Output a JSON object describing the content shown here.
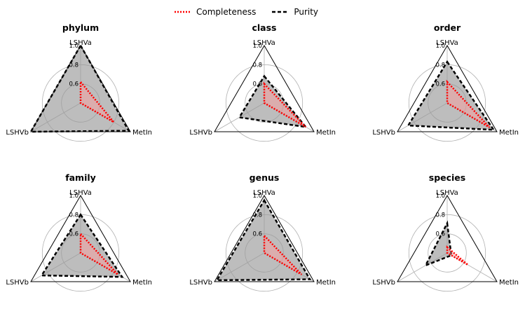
{
  "chart_data": {
    "type": "radar",
    "axes": [
      "LSHVa",
      "MetIn",
      "LSHVb"
    ],
    "legend": [
      {
        "name": "Completeness",
        "color": "#ff0000",
        "style": "dotted",
        "fill": "#ff9999"
      },
      {
        "name": "Purity",
        "color": "#000000",
        "style": "dashed",
        "fill": "#999999"
      }
    ],
    "charts": [
      {
        "title": "phylum",
        "rmin": 0.4,
        "rmax": 1.0,
        "rticks": [
          {
            "v": 0.6,
            "label": "0.6"
          },
          {
            "v": 0.8,
            "label": "0.8"
          },
          {
            "v": 1.0,
            "label": "1.0"
          }
        ],
        "series": {
          "Completeness": [
            0.62,
            0.8,
            0.4
          ],
          "Purity": [
            1.0,
            0.98,
            1.0
          ]
        }
      },
      {
        "title": "class",
        "rmin": 0.4,
        "rmax": 1.0,
        "rticks": [
          {
            "v": 0.6,
            "label": "0.6"
          },
          {
            "v": 0.8,
            "label": "0.8"
          },
          {
            "v": 1.0,
            "label": "1.0"
          }
        ],
        "series": {
          "Completeness": [
            0.6,
            0.9,
            0.4
          ],
          "Purity": [
            0.68,
            0.9,
            0.7
          ]
        }
      },
      {
        "title": "order",
        "rmin": 0.4,
        "rmax": 1.0,
        "rticks": [
          {
            "v": 0.6,
            "label": "0.6"
          },
          {
            "v": 0.8,
            "label": "0.8"
          },
          {
            "v": 1.0,
            "label": "1.0"
          }
        ],
        "series": {
          "Completeness": [
            0.62,
            0.91,
            0.4
          ],
          "Purity": [
            0.83,
            0.96,
            0.87
          ]
        }
      },
      {
        "title": "family",
        "rmin": 0.4,
        "rmax": 1.0,
        "rticks": [
          {
            "v": 0.6,
            "label": "0.6"
          },
          {
            "v": 0.8,
            "label": "0.8"
          },
          {
            "v": 1.0,
            "label": "1.0"
          }
        ],
        "series": {
          "Completeness": [
            0.6,
            0.85,
            0.4
          ],
          "Purity": [
            0.8,
            0.9,
            0.87
          ]
        }
      },
      {
        "title": "genus",
        "rmin": 0.4,
        "rmax": 1.0,
        "rticks": [
          {
            "v": 0.6,
            "label": "0.6"
          },
          {
            "v": 0.8,
            "label": "0.8"
          },
          {
            "v": 1.0,
            "label": "1.0"
          }
        ],
        "series": {
          "Completeness": [
            0.58,
            0.85,
            0.4
          ],
          "Purity": [
            0.95,
            0.95,
            0.97
          ]
        }
      },
      {
        "title": "species",
        "rmin": 0.4,
        "rmax": 1.0,
        "rticks": [
          {
            "v": 0.6,
            "label": "0.6"
          },
          {
            "v": 0.8,
            "label": "0.8"
          },
          {
            "v": 1.0,
            "label": "1.0"
          }
        ],
        "series": {
          "Completeness": [
            0.46,
            0.65,
            0.4
          ],
          "Purity": [
            0.71,
            0.45,
            0.66
          ]
        }
      }
    ]
  }
}
